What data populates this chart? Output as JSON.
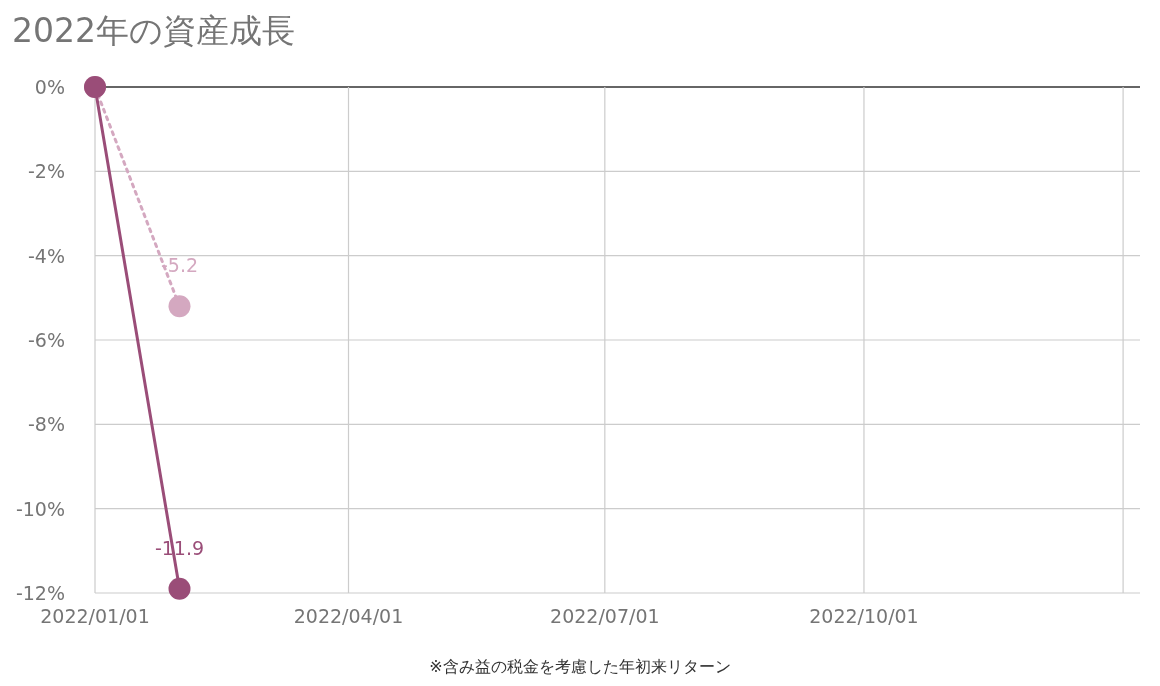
{
  "chart_data": {
    "type": "line",
    "title": "2022年の資産成長",
    "annotations": [
      "※含み益の税金を考慮した年初来リターン"
    ],
    "series": [
      {
        "color": "#d4a8c0",
        "line_style": "dotted",
        "x": [
          "2022-01-01",
          "2022-01-31"
        ],
        "values": [
          0,
          -5.2
        ],
        "value_labels": [
          null,
          "-5.2"
        ]
      },
      {
        "color": "#9a4d78",
        "line_style": "solid",
        "x": [
          "2022-01-01",
          "2022-01-31"
        ],
        "values": [
          0,
          -11.9
        ],
        "value_labels": [
          null,
          "-11.9"
        ]
      }
    ],
    "xlim": [
      "2022-01-01",
      "2023-01-07"
    ],
    "xticks": [
      {
        "value": "2022-01-01",
        "label": "2022/01/01"
      },
      {
        "value": "2022-04-01",
        "label": "2022/04/01"
      },
      {
        "value": "2022-07-01",
        "label": "2022/07/01"
      },
      {
        "value": "2022-10-01",
        "label": "2022/10/01"
      },
      {
        "value": "2023-01-01",
        "label": null
      }
    ],
    "ylim": [
      -12,
      0
    ],
    "yticks": [
      {
        "value": 0,
        "label": "0%"
      },
      {
        "value": -2,
        "label": "-2%"
      },
      {
        "value": -4,
        "label": "-4%"
      },
      {
        "value": -6,
        "label": "-6%"
      },
      {
        "value": -8,
        "label": "-8%"
      },
      {
        "value": -10,
        "label": "-10%"
      },
      {
        "value": -12,
        "label": "-12%"
      }
    ],
    "grid": true,
    "marker": "circle"
  }
}
